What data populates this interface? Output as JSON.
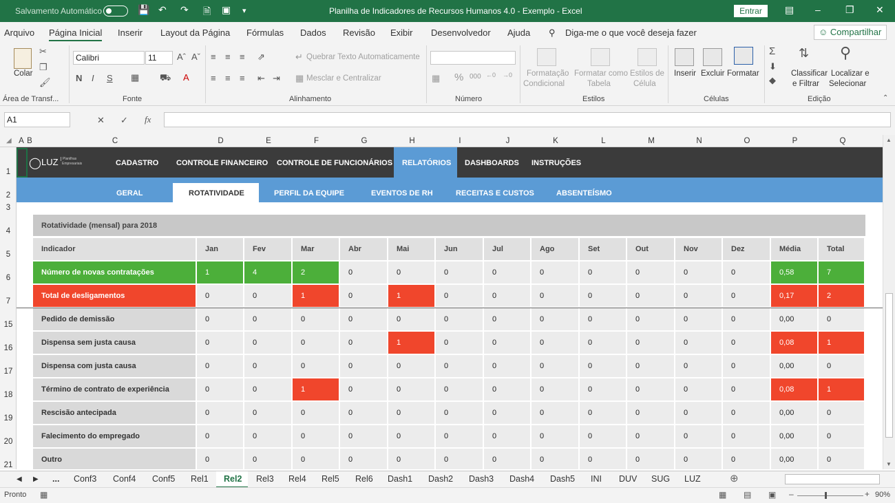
{
  "titlebar": {
    "autosave_label": "Salvamento Automático",
    "title": "Planilha de Indicadores de Recursos Humanos 4.0 - Exemplo  -  Excel",
    "enter_label": "Entrar"
  },
  "menu": {
    "items": [
      "Arquivo",
      "Página Inicial",
      "Inserir",
      "Layout da Página",
      "Fórmulas",
      "Dados",
      "Revisão",
      "Exibir",
      "Desenvolvedor",
      "Ajuda"
    ],
    "tell_me": "Diga-me o que você deseja fazer",
    "share": "Compartilhar"
  },
  "ribbon": {
    "paste": "Colar",
    "clipboard_group": "Área de Transf...",
    "font_name": "Calibri",
    "font_size": "11",
    "bold": "N",
    "italic": "I",
    "underline": "S",
    "font_group": "Fonte",
    "wrap_text": "Quebrar Texto Automaticamente",
    "merge_center": "Mesclar e Centralizar",
    "alignment_group": "Alinhamento",
    "number_format": "",
    "number_group": "Número",
    "cond_format_1": "Formatação",
    "cond_format_2": "Condicional",
    "format_table_1": "Formatar como",
    "format_table_2": "Tabela",
    "cell_styles_1": "Estilos de",
    "cell_styles_2": "Célula",
    "styles_group": "Estilos",
    "insert": "Inserir",
    "delete": "Excluir",
    "format": "Formatar",
    "cells_group": "Células",
    "sort_1": "Classificar",
    "sort_2": "e Filtrar",
    "find_1": "Localizar e",
    "find_2": "Selecionar",
    "editing_group": "Edição"
  },
  "formula_bar": {
    "name_box": "A1",
    "fx": "fx",
    "formula": ""
  },
  "columns": [
    "A",
    "B",
    "C",
    "D",
    "E",
    "F",
    "G",
    "H",
    "I",
    "J",
    "K",
    "L",
    "M",
    "N",
    "O",
    "P",
    "Q"
  ],
  "rows": [
    "1",
    "2",
    "3",
    "4",
    "5",
    "6",
    "7",
    "15",
    "16",
    "17",
    "18",
    "19",
    "20",
    "21"
  ],
  "nav": {
    "brand": "LUZ",
    "brand_sub1": "Planilhas",
    "brand_sub2": "Empresariais",
    "top": [
      "CADASTRO",
      "CONTROLE FINANCEIRO",
      "CONTROLE DE FUNCIONÁRIOS",
      "RELATÓRIOS",
      "DASHBOARDS",
      "INSTRUÇÕES"
    ],
    "sub": [
      "GERAL",
      "ROTATIVIDADE",
      "PERFIL DA EQUIPE",
      "EVENTOS DE RH",
      "RECEITAS E CUSTOS",
      "ABSENTEÍSMO"
    ]
  },
  "report": {
    "title": "Rotatividade (mensal) para 2018",
    "header": [
      "Indicador",
      "Jan",
      "Fev",
      "Mar",
      "Abr",
      "Mai",
      "Jun",
      "Jul",
      "Ago",
      "Set",
      "Out",
      "Nov",
      "Dez",
      "Média",
      "Total"
    ],
    "rows": [
      {
        "label": "Número de novas contratações",
        "values": [
          "1",
          "4",
          "2",
          "0",
          "0",
          "0",
          "0",
          "0",
          "0",
          "0",
          "0",
          "0",
          "0,58",
          "7"
        ],
        "hl": [
          1,
          1,
          1,
          0,
          0,
          0,
          0,
          0,
          0,
          0,
          0,
          0,
          1,
          1
        ],
        "color": "green"
      },
      {
        "label": "Total de desligamentos",
        "values": [
          "0",
          "0",
          "1",
          "0",
          "1",
          "0",
          "0",
          "0",
          "0",
          "0",
          "0",
          "0",
          "0,17",
          "2"
        ],
        "hl": [
          0,
          0,
          1,
          0,
          1,
          0,
          0,
          0,
          0,
          0,
          0,
          0,
          1,
          1
        ],
        "color": "red"
      },
      {
        "label": "Pedido de demissão",
        "values": [
          "0",
          "0",
          "0",
          "0",
          "0",
          "0",
          "0",
          "0",
          "0",
          "0",
          "0",
          "0",
          "0,00",
          "0"
        ],
        "hl": [
          0,
          0,
          0,
          0,
          0,
          0,
          0,
          0,
          0,
          0,
          0,
          0,
          0,
          0
        ],
        "color": "none"
      },
      {
        "label": "Dispensa sem justa causa",
        "values": [
          "0",
          "0",
          "0",
          "0",
          "1",
          "0",
          "0",
          "0",
          "0",
          "0",
          "0",
          "0",
          "0,08",
          "1"
        ],
        "hl": [
          0,
          0,
          0,
          0,
          1,
          0,
          0,
          0,
          0,
          0,
          0,
          0,
          1,
          1
        ],
        "color": "red"
      },
      {
        "label": "Dispensa com justa causa",
        "values": [
          "0",
          "0",
          "0",
          "0",
          "0",
          "0",
          "0",
          "0",
          "0",
          "0",
          "0",
          "0",
          "0,00",
          "0"
        ],
        "hl": [
          0,
          0,
          0,
          0,
          0,
          0,
          0,
          0,
          0,
          0,
          0,
          0,
          0,
          0
        ],
        "color": "none"
      },
      {
        "label": "Término de contrato de experiência",
        "values": [
          "0",
          "0",
          "1",
          "0",
          "0",
          "0",
          "0",
          "0",
          "0",
          "0",
          "0",
          "0",
          "0,08",
          "1"
        ],
        "hl": [
          0,
          0,
          1,
          0,
          0,
          0,
          0,
          0,
          0,
          0,
          0,
          0,
          1,
          1
        ],
        "color": "red"
      },
      {
        "label": "Rescisão antecipada",
        "values": [
          "0",
          "0",
          "0",
          "0",
          "0",
          "0",
          "0",
          "0",
          "0",
          "0",
          "0",
          "0",
          "0,00",
          "0"
        ],
        "hl": [
          0,
          0,
          0,
          0,
          0,
          0,
          0,
          0,
          0,
          0,
          0,
          0,
          0,
          0
        ],
        "color": "none"
      },
      {
        "label": "Falecimento do empregado",
        "values": [
          "0",
          "0",
          "0",
          "0",
          "0",
          "0",
          "0",
          "0",
          "0",
          "0",
          "0",
          "0",
          "0,00",
          "0"
        ],
        "hl": [
          0,
          0,
          0,
          0,
          0,
          0,
          0,
          0,
          0,
          0,
          0,
          0,
          0,
          0
        ],
        "color": "none"
      },
      {
        "label": "Outro",
        "values": [
          "0",
          "0",
          "0",
          "0",
          "0",
          "0",
          "0",
          "0",
          "0",
          "0",
          "0",
          "0",
          "0,00",
          "0"
        ],
        "hl": [
          0,
          0,
          0,
          0,
          0,
          0,
          0,
          0,
          0,
          0,
          0,
          0,
          0,
          0
        ],
        "color": "none"
      }
    ]
  },
  "sheet_tabs": {
    "more": "...",
    "tabs": [
      "Conf3",
      "Conf4",
      "Conf5",
      "Rel1",
      "Rel2",
      "Rel3",
      "Rel4",
      "Rel5",
      "Rel6",
      "Dash1",
      "Dash2",
      "Dash3",
      "Dash4",
      "Dash5",
      "INI",
      "DUV",
      "SUG",
      "LUZ"
    ],
    "active": "Rel2"
  },
  "status": {
    "ready": "Pronto",
    "zoom": "90%"
  },
  "colors": {
    "excel_green": "#217346",
    "nav_dark": "#3b3b3b",
    "nav_blue": "#5b9bd5",
    "highlight_green": "#4caf3a",
    "highlight_red": "#f0462c"
  }
}
